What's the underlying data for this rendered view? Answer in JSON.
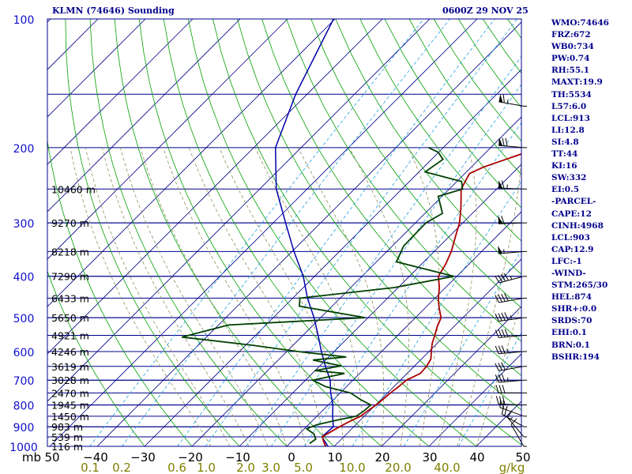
{
  "header": {
    "station_title": "KLMN (74646) Sounding",
    "time_title": "0600Z 29 NOV 25"
  },
  "stats": [
    "WMO:74646",
    "FRZ:672",
    "WB0:734",
    "PW:0.74",
    "RH:55.1",
    "MAXT:19.9",
    "TH:5534",
    "L57:6.0",
    "LCL:913",
    "LI:12.8",
    "SI:4.8",
    "TT:44",
    "KI:16",
    "SW:332",
    "EI:0.5",
    "-PARCEL-",
    "CAPE:12",
    "CINH:4968",
    "LCL:903",
    "CAP:12.9",
    "LFC:-1",
    "-WIND-",
    "STM:265/30",
    "HEL:874",
    "SHR+:0.0",
    "SRDS:70",
    "EHI:0.1",
    "BRN:0.1",
    "BSHR:194"
  ],
  "colors": {
    "frame": "#00008b",
    "isobar": "#00008b",
    "isotherm": "#00008b",
    "dry_adiabat": "#00a000",
    "moist_adiabat": "#909060",
    "mixing_ratio": "#20a0e0",
    "temperature": "#aa0000",
    "dewpoint": "#004000",
    "parcel": "#0000aa",
    "pressure_labels": "#1010cc",
    "temp_labels": "#000000",
    "mixing_labels": "#808000",
    "wind": "#000000"
  },
  "chart_data": {
    "type": "skew-T log-p sounding",
    "pressure_unit": "mb",
    "pressure_range": [
      1000,
      100
    ],
    "temperature_range": [
      -50,
      50
    ],
    "pressure_ticks": [
      100,
      200,
      300,
      400,
      500,
      600,
      700,
      800,
      900,
      1000
    ],
    "temperature_ticks": [
      "mb",
      "50",
      "−40",
      "−30",
      "−20",
      "−10",
      "0",
      "10",
      "20",
      "30",
      "40",
      "50"
    ],
    "mixing_ratio_ticks": [
      "0.1",
      "0.2",
      "0.6",
      "1.0",
      "2.0",
      "3.0",
      "5.0",
      "10.0",
      "20.0",
      "40.0"
    ],
    "mixing_ratio_unit": "g/kg",
    "height_labels": [
      {
        "p": 250,
        "label": "10460 m"
      },
      {
        "p": 300,
        "label": "9270 m"
      },
      {
        "p": 350,
        "label": "8218 m"
      },
      {
        "p": 400,
        "label": "7290 m"
      },
      {
        "p": 450,
        "label": "6433 m"
      },
      {
        "p": 500,
        "label": "5650 m"
      },
      {
        "p": 550,
        "label": "4921 m"
      },
      {
        "p": 600,
        "label": "4246 m"
      },
      {
        "p": 650,
        "label": "3619 m"
      },
      {
        "p": 700,
        "label": "3028 m"
      },
      {
        "p": 750,
        "label": "2470 m"
      },
      {
        "p": 800,
        "label": "1945 m"
      },
      {
        "p": 850,
        "label": "1450 m"
      },
      {
        "p": 900,
        "label": "983 m"
      },
      {
        "p": 950,
        "label": "539 m"
      },
      {
        "p": 1000,
        "label": "116 m"
      }
    ],
    "temperature_profile": [
      [
        1000,
        8.2
      ],
      [
        975,
        6.8
      ],
      [
        950,
        5.5
      ],
      [
        925,
        6.2
      ],
      [
        900,
        7.0
      ],
      [
        875,
        8.0
      ],
      [
        850,
        9.2
      ],
      [
        825,
        9.6
      ],
      [
        800,
        10.1
      ],
      [
        775,
        10.4
      ],
      [
        750,
        10.6
      ],
      [
        725,
        11.0
      ],
      [
        700,
        11.3
      ],
      [
        675,
        12.8
      ],
      [
        650,
        12.6
      ],
      [
        625,
        12.0
      ],
      [
        600,
        10.5
      ],
      [
        575,
        9.0
      ],
      [
        550,
        7.8
      ],
      [
        525,
        6.5
      ],
      [
        500,
        5.4
      ],
      [
        475,
        3.0
      ],
      [
        450,
        0.7
      ],
      [
        425,
        -1.3
      ],
      [
        400,
        -3.9
      ],
      [
        375,
        -4.9
      ],
      [
        350,
        -6.4
      ],
      [
        325,
        -8.5
      ],
      [
        300,
        -10.7
      ],
      [
        275,
        -13.8
      ],
      [
        250,
        -17.5
      ],
      [
        230,
        -19.0
      ],
      [
        222,
        -17.4
      ],
      [
        215,
        -15.0
      ],
      [
        205,
        -11.5
      ]
    ],
    "dewpoint_profile": [
      [
        985,
        4.2
      ],
      [
        962,
        4.6
      ],
      [
        935,
        3.1
      ],
      [
        910,
        0.5
      ],
      [
        890,
        1.8
      ],
      [
        870,
        4.8
      ],
      [
        850,
        8.3
      ],
      [
        825,
        8.8
      ],
      [
        800,
        9.0
      ],
      [
        778,
        5.8
      ],
      [
        750,
        2.2
      ],
      [
        725,
        -4.4
      ],
      [
        700,
        -8.5
      ],
      [
        675,
        -3.2
      ],
      [
        665,
        -10.1
      ],
      [
        648,
        -5.5
      ],
      [
        628,
        -12.7
      ],
      [
        618,
        -6.3
      ],
      [
        600,
        -17.6
      ],
      [
        580,
        -28.6
      ],
      [
        555,
        -45.2
      ],
      [
        520,
        -37.9
      ],
      [
        500,
        -10.6
      ],
      [
        470,
        -26.9
      ],
      [
        450,
        -28.5
      ],
      [
        425,
        -10.8
      ],
      [
        400,
        -0.6
      ],
      [
        385,
        -8.1
      ],
      [
        370,
        -15.8
      ],
      [
        340,
        -17.6
      ],
      [
        300,
        -17.8
      ],
      [
        285,
        -16.3
      ],
      [
        260,
        -20.8
      ],
      [
        250,
        -17.2
      ],
      [
        240,
        -19.0
      ],
      [
        228,
        -28.7
      ],
      [
        213,
        -27.6
      ],
      [
        205,
        -30.1
      ],
      [
        200,
        -33.1
      ]
    ],
    "parcel_profile": [
      [
        1000,
        8.7
      ],
      [
        950,
        5.4
      ],
      [
        900,
        5.7
      ],
      [
        850,
        3.3
      ],
      [
        800,
        1.0
      ],
      [
        750,
        -2.0
      ],
      [
        700,
        -4.8
      ],
      [
        650,
        -8.7
      ],
      [
        600,
        -12.7
      ],
      [
        550,
        -16.8
      ],
      [
        500,
        -21.4
      ],
      [
        450,
        -26.9
      ],
      [
        400,
        -32.4
      ],
      [
        350,
        -39.6
      ],
      [
        300,
        -47.4
      ],
      [
        250,
        -56.5
      ],
      [
        200,
        -65.4
      ],
      [
        150,
        -72.4
      ],
      [
        100,
        -80.3
      ]
    ],
    "wind_barbs": [
      {
        "p": 160,
        "dir": 280,
        "spd": 65
      },
      {
        "p": 200,
        "dir": 275,
        "spd": 70
      },
      {
        "p": 250,
        "dir": 272,
        "spd": 65
      },
      {
        "p": 300,
        "dir": 268,
        "spd": 60
      },
      {
        "p": 350,
        "dir": 265,
        "spd": 55
      },
      {
        "p": 400,
        "dir": 255,
        "spd": 45
      },
      {
        "p": 450,
        "dir": 260,
        "spd": 40
      },
      {
        "p": 500,
        "dir": 262,
        "spd": 45
      },
      {
        "p": 550,
        "dir": 265,
        "spd": 40
      },
      {
        "p": 600,
        "dir": 265,
        "spd": 35
      },
      {
        "p": 650,
        "dir": 260,
        "spd": 30
      },
      {
        "p": 700,
        "dir": 265,
        "spd": 35
      },
      {
        "p": 750,
        "dir": 270,
        "spd": 30
      },
      {
        "p": 800,
        "dir": 272,
        "spd": 30
      },
      {
        "p": 850,
        "dir": 290,
        "spd": 25
      },
      {
        "p": 900,
        "dir": 300,
        "spd": 20
      },
      {
        "p": 950,
        "dir": 320,
        "spd": 15
      },
      {
        "p": 1000,
        "dir": 330,
        "spd": 10
      }
    ]
  }
}
